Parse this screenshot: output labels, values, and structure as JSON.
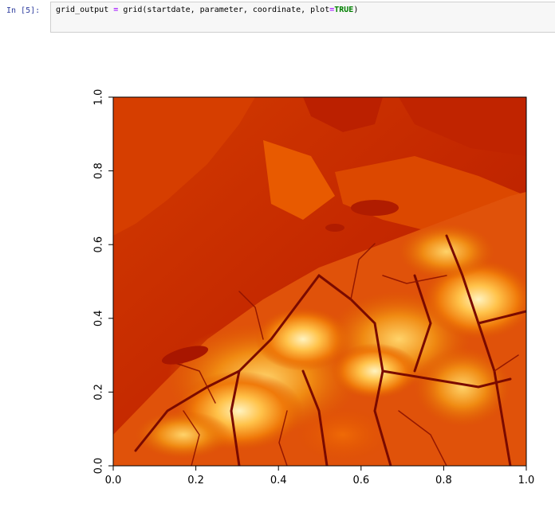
{
  "cell": {
    "prompt": "In [5]:",
    "code": {
      "var": "grid_output",
      "op": "=",
      "call": "grid(startdate, parameter, coordinate, plot",
      "op2": "=",
      "kw": "TRUE",
      "end": ")"
    }
  },
  "colors": {
    "prompt": "#303f9f",
    "background_dark": "#8b0000",
    "background_mid": "#c92a00",
    "high_elevation": "#fff6cf"
  },
  "chart_data": {
    "type": "heatmap",
    "title": "",
    "xlabel": "",
    "ylabel": "",
    "xlim": [
      0.0,
      1.0
    ],
    "ylim": [
      0.0,
      1.0
    ],
    "x_ticks": [
      "0.0",
      "0.2",
      "0.4",
      "0.6",
      "0.8",
      "1.0"
    ],
    "y_ticks": [
      "0.0",
      "0.2",
      "0.4",
      "0.6",
      "0.8",
      "1.0"
    ],
    "colormap": "heat",
    "grid": false,
    "legend": "none"
  }
}
